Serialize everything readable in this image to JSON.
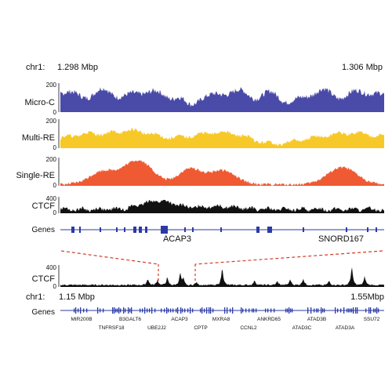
{
  "colors": {
    "micro_c": "#4a4aa8",
    "multi_re": "#f7c928",
    "single_re": "#ef5a32",
    "ctcf": "#111111",
    "genes": "#2b3aa6",
    "zoom_lines": "#d43a2a"
  },
  "top_coords": {
    "chrom": "chr1:",
    "start": "1.298 Mbp",
    "end": "1.306 Mbp"
  },
  "tracks": [
    {
      "label": "Micro-C",
      "ymax": "200",
      "ymin": "0"
    },
    {
      "label": "Multi-RE",
      "ymax": "200",
      "ymin": "0"
    },
    {
      "label": "Single-RE",
      "ymax": "200",
      "ymin": "0"
    },
    {
      "label": "CTCF",
      "ymax": "400",
      "ymin": "0"
    }
  ],
  "genes_top": {
    "label": "Genes",
    "names": [
      "ACAP3",
      "SNORD167"
    ]
  },
  "ctcf_bottom": {
    "label": "CTCF",
    "ymax": "400",
    "ymin": "0"
  },
  "bottom_coords": {
    "chrom": "chr1:",
    "start": "1.15 Mbp",
    "end": "1.55Mbp"
  },
  "genes_bottom": {
    "label": "Genes",
    "names": [
      "MIR200B",
      "TNFRSF18",
      "B3GALT6",
      "UBE2J2",
      "ACAP3",
      "CPTP",
      "MXRA8",
      "CCNL2",
      "ANKRD65",
      "ATAD3C",
      "ATAD3B",
      "ATAD3A",
      "SSU72"
    ]
  }
}
